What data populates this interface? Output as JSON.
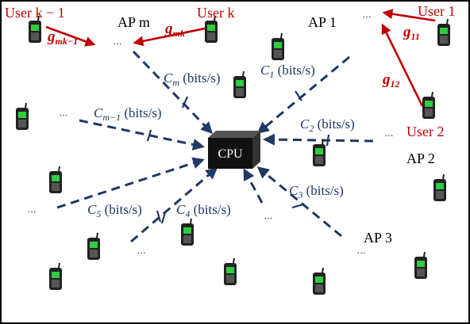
{
  "cpu": {
    "label": "CPU"
  },
  "aps": [
    {
      "id": "m",
      "label": "AP m"
    },
    {
      "id": "1",
      "label": "AP 1"
    },
    {
      "id": "2",
      "label": "AP 2"
    },
    {
      "id": "3",
      "label": "AP 3"
    }
  ],
  "users": [
    {
      "id": "k-1",
      "label": "User k − 1"
    },
    {
      "id": "k",
      "label": "User k"
    },
    {
      "id": "1",
      "label": "User 1"
    },
    {
      "id": "2",
      "label": "User 2"
    }
  ],
  "channels": [
    {
      "id": "g_mk-1",
      "label": "g",
      "sub": "mk−1"
    },
    {
      "id": "g_mk",
      "label": "g",
      "sub": "mk"
    },
    {
      "id": "g_11",
      "label": "g",
      "sub": "11"
    },
    {
      "id": "g_12",
      "label": "g",
      "sub": "12"
    }
  ],
  "links": [
    {
      "id": "m",
      "label": "C",
      "sub": "m",
      "unit": " (bits/s)"
    },
    {
      "id": "1",
      "label": "C",
      "sub": "1",
      "unit": " (bits/s)"
    },
    {
      "id": "m-1",
      "label": "C",
      "sub": "m−1",
      "unit": " (bits/s)"
    },
    {
      "id": "2",
      "label": "C",
      "sub": "2",
      "unit": " (bits/s)"
    },
    {
      "id": "3",
      "label": "C",
      "sub": "3",
      "unit": " (bits/s)"
    },
    {
      "id": "5",
      "label": "C",
      "sub": "5",
      "unit": " (bits/s)"
    },
    {
      "id": "4",
      "label": "C",
      "sub": "4",
      "unit": " (bits/s)"
    }
  ],
  "antenna_dots": "…",
  "colors": {
    "link": "#1f3864",
    "channel": "#c00000",
    "phone_body": "#222222",
    "phone_screen": "#2ecc40"
  }
}
